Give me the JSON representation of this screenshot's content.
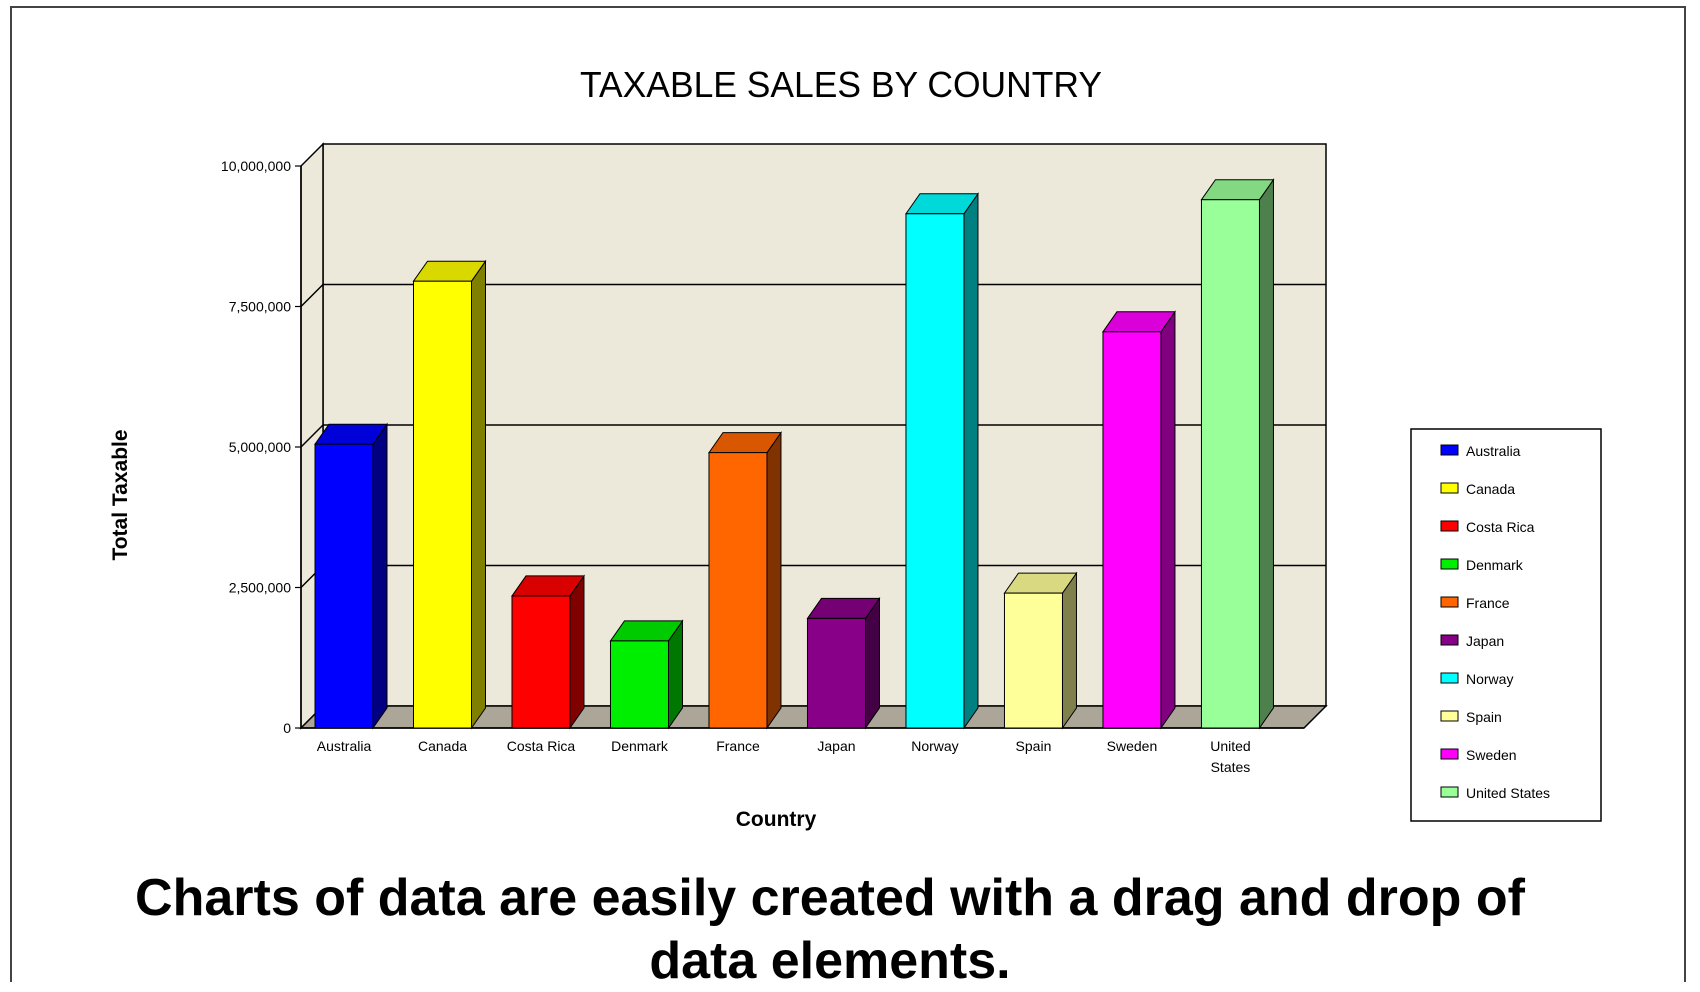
{
  "chart_data": {
    "type": "bar",
    "title": "TAXABLE SALES BY COUNTRY",
    "xlabel": "Country",
    "ylabel": "Total Taxable",
    "ylim": [
      0,
      10000000
    ],
    "yticks": [
      "0",
      "2,500,000",
      "5,000,000",
      "7,500,000",
      "10,000,000"
    ],
    "categories": [
      {
        "label": [
          "Australia"
        ],
        "name": "Australia",
        "value": 5050000,
        "color": "#0000ff"
      },
      {
        "label": [
          "Canada"
        ],
        "name": "Canada",
        "value": 7950000,
        "color": "#ffff00"
      },
      {
        "label": [
          "Costa Rica"
        ],
        "name": "Costa Rica",
        "value": 2350000,
        "color": "#ff0000"
      },
      {
        "label": [
          "Denmark"
        ],
        "name": "Denmark",
        "value": 1550000,
        "color": "#00ee00"
      },
      {
        "label": [
          "France"
        ],
        "name": "France",
        "value": 4900000,
        "color": "#ff6600"
      },
      {
        "label": [
          "Japan"
        ],
        "name": "Japan",
        "value": 1950000,
        "color": "#880088"
      },
      {
        "label": [
          "Norway"
        ],
        "name": "Norway",
        "value": 9150000,
        "color": "#00ffff"
      },
      {
        "label": [
          "Spain"
        ],
        "name": "Spain",
        "value": 2400000,
        "color": "#ffff99"
      },
      {
        "label": [
          "Sweden"
        ],
        "name": "Sweden",
        "value": 7050000,
        "color": "#ff00ff"
      },
      {
        "label": [
          "United",
          "States"
        ],
        "name": "United States",
        "value": 9400000,
        "color": "#99ff99"
      }
    ],
    "grid": true,
    "legend": "right",
    "wall_color": "#ede9da",
    "floor_color": "#aca699"
  },
  "caption": {
    "line1": "Charts of data are easily created with a drag and drop of",
    "line2": "data elements."
  }
}
